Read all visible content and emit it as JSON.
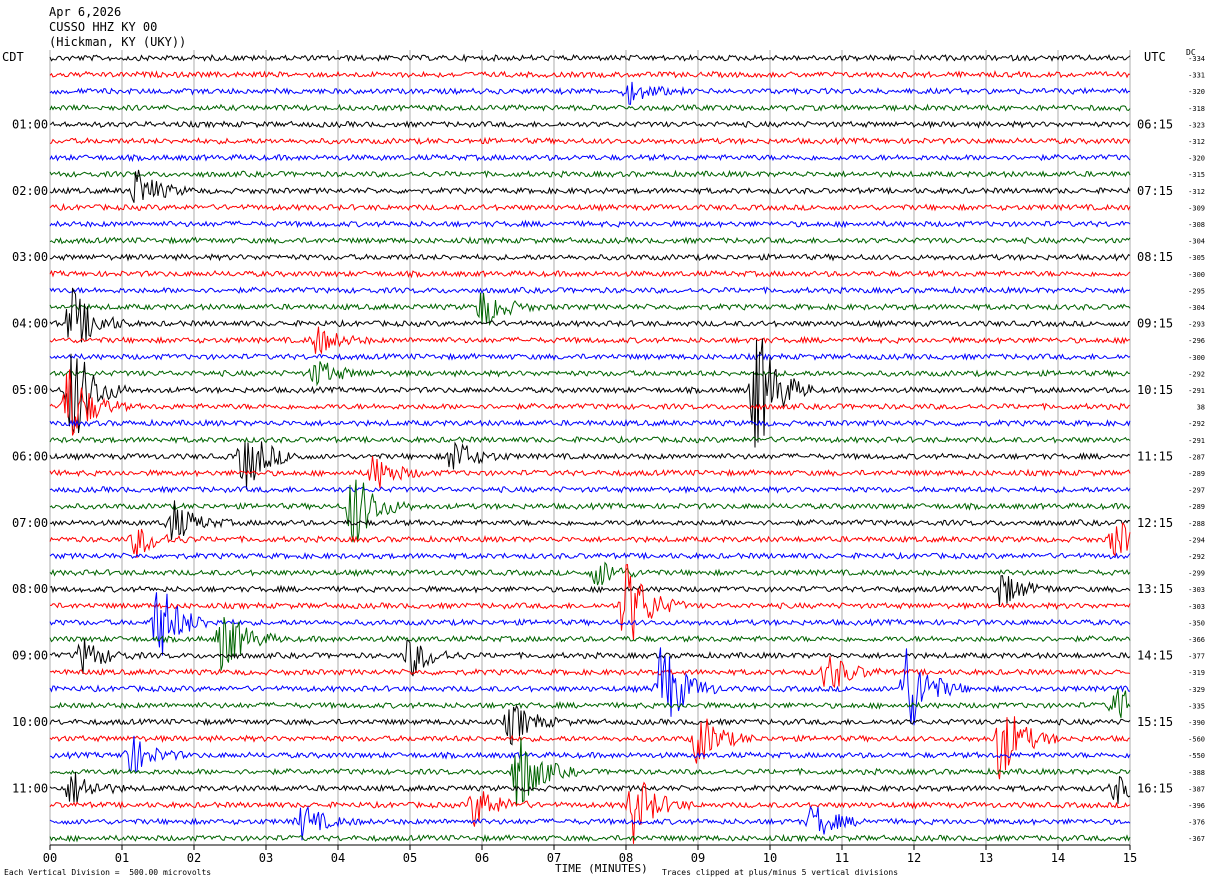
{
  "header": {
    "date": "Apr 6,2026",
    "station": "CUSSO HHZ KY 00",
    "location": "(Hickman, KY (UKY))"
  },
  "left_tz": "CDT",
  "right_tz": "UTC",
  "dc_label": "DC",
  "footer": {
    "scale": "Each Vertical Division =  500.00 microvolts",
    "clip": "Traces clipped at plus/minus 5 vertical divisions"
  },
  "colors": {
    "trace": [
      "#000000",
      "#ff0000",
      "#0000ff",
      "#006400"
    ],
    "grid": "#888888"
  },
  "chart_data": {
    "type": "line",
    "subtype": "helicorder",
    "xlabel": "TIME (MINUTES)",
    "x_ticks": [
      "00",
      "01",
      "02",
      "03",
      "04",
      "05",
      "06",
      "07",
      "08",
      "09",
      "10",
      "11",
      "12",
      "13",
      "14",
      "15"
    ],
    "xlim": [
      0,
      15
    ],
    "rows": 48,
    "minutes_per_row": 15,
    "left_hour_labels": [
      "01:00",
      "02:00",
      "03:00",
      "04:00",
      "05:00",
      "06:00",
      "07:00",
      "08:00",
      "09:00",
      "10:00",
      "11:00"
    ],
    "right_hour_labels": [
      "06:15",
      "07:15",
      "08:15",
      "09:15",
      "10:15",
      "11:15",
      "12:15",
      "13:15",
      "14:15",
      "15:15",
      "16:15"
    ],
    "dc_offsets": [
      "-334",
      "-331",
      "-320",
      "-318",
      "-323",
      "-312",
      "-320",
      "-315",
      "-312",
      "-309",
      "-308",
      "-304",
      "-305",
      "-300",
      "-295",
      "-304",
      "-293",
      "-296",
      "-300",
      "-292",
      "-291",
      "38",
      "-292",
      "-291",
      "-287",
      "-289",
      "-297",
      "-289",
      "-288",
      "-294",
      "-292",
      "-299",
      "-303",
      "-303",
      "-350",
      "-366",
      "-377",
      "-319",
      "-329",
      "-335",
      "-390",
      "-560",
      "-550",
      "-388",
      "-387",
      "-396",
      "-376",
      "-367"
    ],
    "events": [
      {
        "row": 2,
        "minute": 8.05,
        "amp": 0.8
      },
      {
        "row": 8,
        "minute": 1.2,
        "amp": 1.5
      },
      {
        "row": 15,
        "minute": 6.0,
        "amp": 1.5
      },
      {
        "row": 16,
        "minute": 0.3,
        "amp": 2.5
      },
      {
        "row": 17,
        "minute": 3.7,
        "amp": 1.0
      },
      {
        "row": 19,
        "minute": 3.7,
        "amp": 1.0
      },
      {
        "row": 20,
        "minute": 9.8,
        "amp": 5.0
      },
      {
        "row": 20,
        "minute": 0.3,
        "amp": 4.0
      },
      {
        "row": 21,
        "minute": 0.25,
        "amp": 3.0
      },
      {
        "row": 24,
        "minute": 2.7,
        "amp": 2.5
      },
      {
        "row": 24,
        "minute": 5.6,
        "amp": 1.3
      },
      {
        "row": 25,
        "minute": 4.5,
        "amp": 1.3
      },
      {
        "row": 27,
        "minute": 4.2,
        "amp": 3.0
      },
      {
        "row": 28,
        "minute": 1.7,
        "amp": 1.5
      },
      {
        "row": 29,
        "minute": 1.2,
        "amp": 1.2
      },
      {
        "row": 29,
        "minute": 14.8,
        "amp": 1.5
      },
      {
        "row": 31,
        "minute": 7.6,
        "amp": 1.0
      },
      {
        "row": 32,
        "minute": 13.2,
        "amp": 1.3
      },
      {
        "row": 33,
        "minute": 8.0,
        "amp": 3.5
      },
      {
        "row": 34,
        "minute": 1.5,
        "amp": 3.0
      },
      {
        "row": 35,
        "minute": 2.4,
        "amp": 2.5
      },
      {
        "row": 36,
        "minute": 0.45,
        "amp": 1.2
      },
      {
        "row": 36,
        "minute": 5.0,
        "amp": 1.5
      },
      {
        "row": 37,
        "minute": 10.8,
        "amp": 1.5
      },
      {
        "row": 38,
        "minute": 8.5,
        "amp": 3.5
      },
      {
        "row": 38,
        "minute": 11.9,
        "amp": 3.5
      },
      {
        "row": 39,
        "minute": 14.8,
        "amp": 1.5
      },
      {
        "row": 40,
        "minute": 6.4,
        "amp": 1.5
      },
      {
        "row": 41,
        "minute": 13.2,
        "amp": 3.0
      },
      {
        "row": 41,
        "minute": 9.0,
        "amp": 2.0
      },
      {
        "row": 42,
        "minute": 1.1,
        "amp": 1.5
      },
      {
        "row": 43,
        "minute": 6.5,
        "amp": 3.0
      },
      {
        "row": 44,
        "minute": 0.3,
        "amp": 1.3
      },
      {
        "row": 44,
        "minute": 14.8,
        "amp": 1.0
      },
      {
        "row": 45,
        "minute": 8.1,
        "amp": 2.5
      },
      {
        "row": 45,
        "minute": 5.9,
        "amp": 1.5
      },
      {
        "row": 46,
        "minute": 3.5,
        "amp": 1.2
      },
      {
        "row": 46,
        "minute": 10.6,
        "amp": 1.3
      }
    ]
  }
}
